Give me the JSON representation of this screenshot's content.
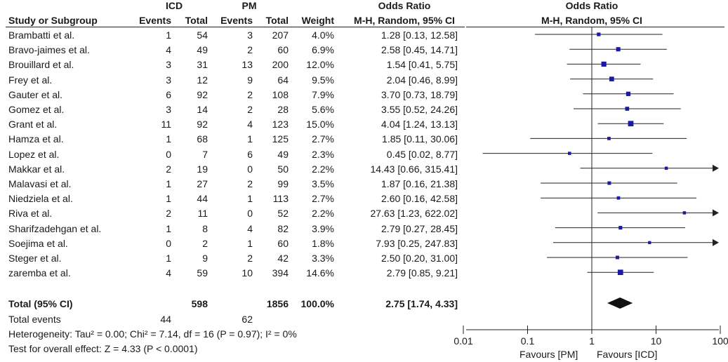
{
  "chart_data": {
    "type": "forest",
    "groups": {
      "experimental": "ICD",
      "control": "PM"
    },
    "columns": {
      "study": "Study or Subgroup",
      "events": "Events",
      "total": "Total",
      "weight": "Weight",
      "effect_title": "Odds Ratio",
      "effect_method": "M-H, Random, 95% CI",
      "plot_title": "Odds Ratio",
      "plot_method": "M-H, Random, 95% CI"
    },
    "studies": [
      {
        "name": "Brambatti et al.",
        "e1": "1",
        "n1": "54",
        "e2": "3",
        "n2": "207",
        "weight": "4.0%",
        "ci_text": "1.28 [0.13, 12.58]",
        "or": 1.28,
        "lo": 0.13,
        "hi": 12.58,
        "w": 4.0
      },
      {
        "name": "Bravo-jaimes et al.",
        "e1": "4",
        "n1": "49",
        "e2": "2",
        "n2": "60",
        "weight": "6.9%",
        "ci_text": "2.58 [0.45, 14.71]",
        "or": 2.58,
        "lo": 0.45,
        "hi": 14.71,
        "w": 6.9
      },
      {
        "name": "Brouillard et al.",
        "e1": "3",
        "n1": "31",
        "e2": "13",
        "n2": "200",
        "weight": "12.0%",
        "ci_text": "1.54 [0.41, 5.75]",
        "or": 1.54,
        "lo": 0.41,
        "hi": 5.75,
        "w": 12.0
      },
      {
        "name": "Frey et al.",
        "e1": "3",
        "n1": "12",
        "e2": "9",
        "n2": "64",
        "weight": "9.5%",
        "ci_text": "2.04 [0.46, 8.99]",
        "or": 2.04,
        "lo": 0.46,
        "hi": 8.99,
        "w": 9.5
      },
      {
        "name": "Gauter et al.",
        "e1": "6",
        "n1": "92",
        "e2": "2",
        "n2": "108",
        "weight": "7.9%",
        "ci_text": "3.70 [0.73, 18.79]",
        "or": 3.7,
        "lo": 0.73,
        "hi": 18.79,
        "w": 7.9
      },
      {
        "name": "Gomez et al.",
        "e1": "3",
        "n1": "14",
        "e2": "2",
        "n2": "28",
        "weight": "5.6%",
        "ci_text": "3.55 [0.52, 24.26]",
        "or": 3.55,
        "lo": 0.52,
        "hi": 24.26,
        "w": 5.6
      },
      {
        "name": "Grant et al.",
        "e1": "11",
        "n1": "92",
        "e2": "4",
        "n2": "123",
        "weight": "15.0%",
        "ci_text": "4.04 [1.24, 13.13]",
        "or": 4.04,
        "lo": 1.24,
        "hi": 13.13,
        "w": 15.0
      },
      {
        "name": "Hamza et al.",
        "e1": "1",
        "n1": "68",
        "e2": "1",
        "n2": "125",
        "weight": "2.7%",
        "ci_text": "1.85 [0.11, 30.06]",
        "or": 1.85,
        "lo": 0.11,
        "hi": 30.06,
        "w": 2.7
      },
      {
        "name": "Lopez et al.",
        "e1": "0",
        "n1": "7",
        "e2": "6",
        "n2": "49",
        "weight": "2.3%",
        "ci_text": "0.45 [0.02, 8.77]",
        "or": 0.45,
        "lo": 0.02,
        "hi": 8.77,
        "w": 2.3
      },
      {
        "name": "Makkar et al.",
        "e1": "2",
        "n1": "19",
        "e2": "0",
        "n2": "50",
        "weight": "2.2%",
        "ci_text": "14.43 [0.66, 315.41]",
        "or": 14.43,
        "lo": 0.66,
        "hi": 315.41,
        "w": 2.2
      },
      {
        "name": "Malavasi et al.",
        "e1": "1",
        "n1": "27",
        "e2": "2",
        "n2": "99",
        "weight": "3.5%",
        "ci_text": "1.87 [0.16, 21.38]",
        "or": 1.87,
        "lo": 0.16,
        "hi": 21.38,
        "w": 3.5
      },
      {
        "name": "Niedziela et al.",
        "e1": "1",
        "n1": "44",
        "e2": "1",
        "n2": "113",
        "weight": "2.7%",
        "ci_text": "2.60 [0.16, 42.58]",
        "or": 2.6,
        "lo": 0.16,
        "hi": 42.58,
        "w": 2.7
      },
      {
        "name": "Riva et al.",
        "e1": "2",
        "n1": "11",
        "e2": "0",
        "n2": "52",
        "weight": "2.2%",
        "ci_text": "27.63 [1.23, 622.02]",
        "or": 27.63,
        "lo": 1.23,
        "hi": 622.02,
        "w": 2.2
      },
      {
        "name": "Sharifzadehgan et al.",
        "e1": "1",
        "n1": "8",
        "e2": "4",
        "n2": "82",
        "weight": "3.9%",
        "ci_text": "2.79 [0.27, 28.45]",
        "or": 2.79,
        "lo": 0.27,
        "hi": 28.45,
        "w": 3.9
      },
      {
        "name": "Soejima et al.",
        "e1": "0",
        "n1": "2",
        "e2": "1",
        "n2": "60",
        "weight": "1.8%",
        "ci_text": "7.93 [0.25, 247.83]",
        "or": 7.93,
        "lo": 0.25,
        "hi": 247.83,
        "w": 1.8
      },
      {
        "name": "Steger et al.",
        "e1": "1",
        "n1": "9",
        "e2": "2",
        "n2": "42",
        "weight": "3.3%",
        "ci_text": "2.50 [0.20, 31.00]",
        "or": 2.5,
        "lo": 0.2,
        "hi": 31.0,
        "w": 3.3
      },
      {
        "name": "zaremba et al.",
        "e1": "4",
        "n1": "59",
        "e2": "10",
        "n2": "394",
        "weight": "14.6%",
        "ci_text": "2.79 [0.85, 9.21]",
        "or": 2.79,
        "lo": 0.85,
        "hi": 9.21,
        "w": 14.6
      }
    ],
    "total": {
      "label": "Total (95% CI)",
      "n1": "598",
      "n2": "1856",
      "weight": "100.0%",
      "ci_text": "2.75 [1.74, 4.33]",
      "or": 2.75,
      "lo": 1.74,
      "hi": 4.33
    },
    "total_events": {
      "label": "Total events",
      "e1": "44",
      "e2": "62"
    },
    "heterogeneity": "Heterogeneity: Tau² = 0.00; Chi² = 7.14, df = 16 (P = 0.97); I² = 0%",
    "overall_effect": "Test for overall effect: Z = 4.33 (P < 0.0001)",
    "axis": {
      "scale": "log",
      "xlim": [
        0.01,
        100
      ],
      "ticks": [
        0.01,
        0.1,
        1,
        10,
        100
      ],
      "tick_labels": [
        "0.01",
        "0.1",
        "1",
        "10",
        "100"
      ]
    },
    "favours_left": "Favours [PM]",
    "favours_right": "Favours [ICD]",
    "colors": {
      "study_marker": "#1a1aa6",
      "diamond": "#111111",
      "line": "#222222"
    }
  }
}
